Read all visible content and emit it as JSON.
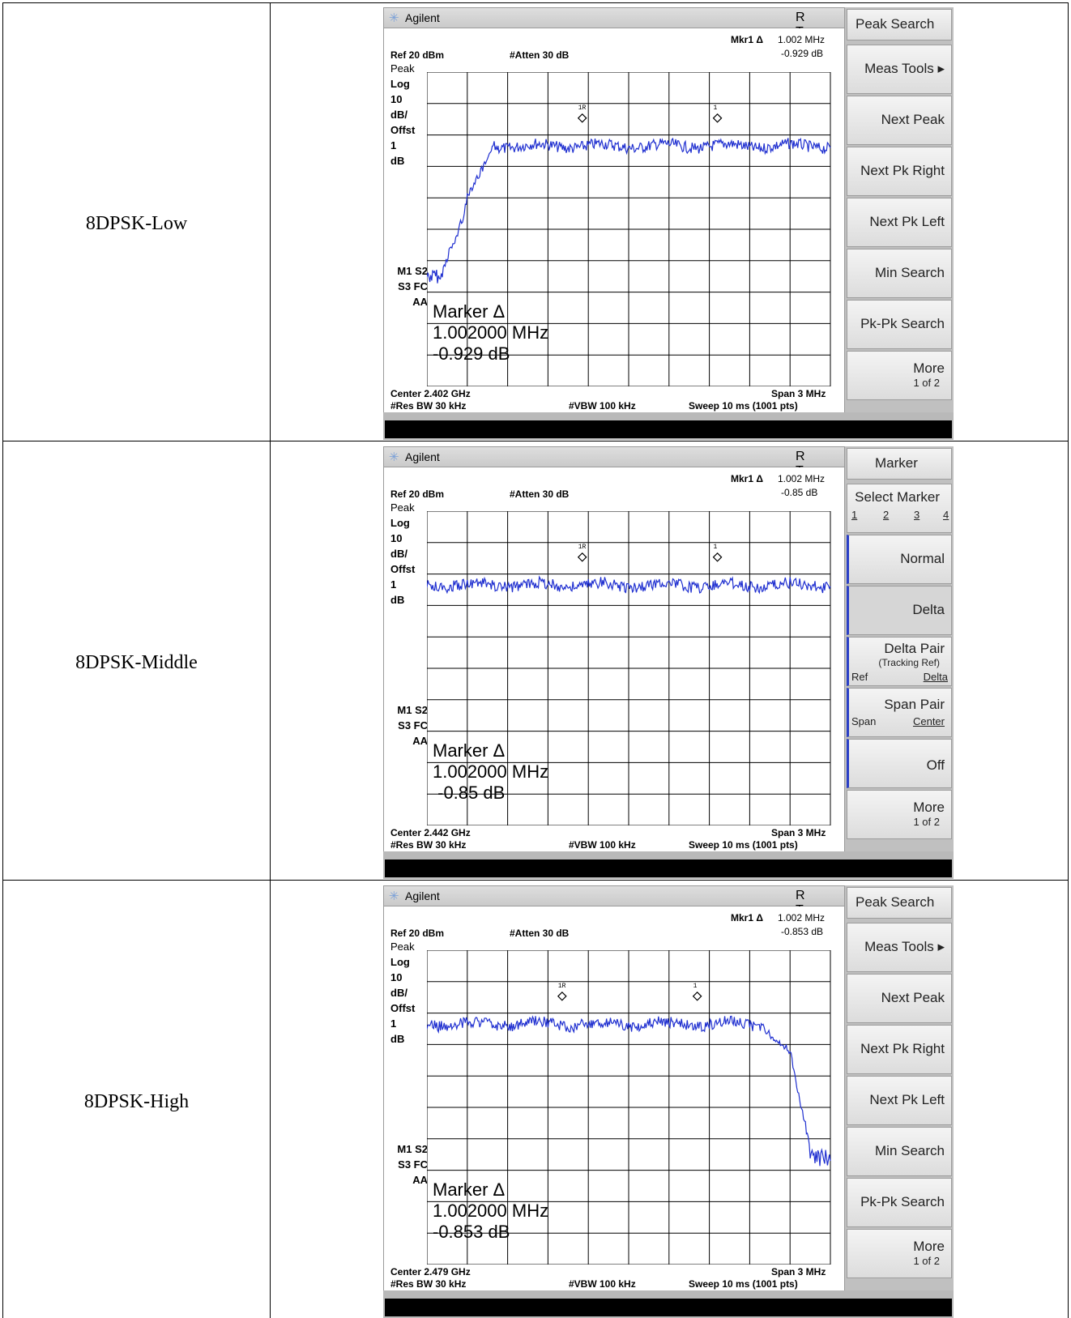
{
  "rows": [
    {
      "label": "8DPSK-Low",
      "window": {
        "brand": "Agilent",
        "rt": "R T"
      },
      "header": {
        "mkr_label": "Mkr1 Δ",
        "mkr_freq": "1.002 MHz",
        "mkr_level": "-0.929 dB",
        "ref": "Ref 20 dBm",
        "atten": "#Atten 30 dB",
        "side": [
          "Peak",
          "Log",
          "10",
          "dB/",
          "Offst",
          "1",
          "dB"
        ],
        "flags": [
          "M1  S2",
          "S3  FC",
          "AA"
        ]
      },
      "marker_box": {
        "line1": "Marker Δ",
        "line2": "1.002000 MHz",
        "line3": "-0.929 dB"
      },
      "footer": {
        "center": "Center 2.402 GHz",
        "span": "Span 3 MHz",
        "rbw": "#Res BW 30 kHz",
        "vbw": "#VBW 100 kHz",
        "sweep": "Sweep 10 ms (1001 pts)"
      },
      "softkeys": [
        "Peak Search",
        "Meas Tools ▸",
        "Next Peak",
        "Next Pk Right",
        "Next Pk Left",
        "Min Search",
        "Pk-Pk Search",
        "More"
      ],
      "softkey_more_sub": "1 of 2",
      "trace_color": "#1f2fd0",
      "trace_type": "low",
      "markers": [
        {
          "label": "1R",
          "freq_pos": 0.385
        },
        {
          "label": "1",
          "freq_pos": 0.72
        }
      ]
    },
    {
      "label": "8DPSK-Middle",
      "window": {
        "brand": "Agilent",
        "rt": "R T"
      },
      "header": {
        "mkr_label": "Mkr1 Δ",
        "mkr_freq": "1.002 MHz",
        "mkr_level": "-0.85 dB",
        "ref": "Ref 20 dBm",
        "atten": "#Atten 30 dB",
        "side": [
          "Peak",
          "Log",
          "10",
          "dB/",
          "Offst",
          "1",
          "dB"
        ],
        "flags": [
          "M1  S2",
          "S3  FC",
          "AA"
        ]
      },
      "marker_box": {
        "line1": "Marker Δ",
        "line2": "1.002000 MHz",
        "line3": " -0.85 dB"
      },
      "footer": {
        "center": "Center 2.442 GHz",
        "span": "Span 3 MHz",
        "rbw": "#Res BW 30 kHz",
        "vbw": "#VBW 100 kHz",
        "sweep": "Sweep 10 ms (1001 pts)"
      },
      "softkeys_marker": {
        "title": "Marker",
        "select": "Select Marker",
        "select_nums": [
          "1",
          "2",
          "3",
          "4"
        ],
        "normal": "Normal",
        "delta": "Delta",
        "delta_pair": "Delta Pair",
        "delta_pair_sub": "(Tracking Ref)",
        "ref": "Ref",
        "delta_u": "Delta",
        "span_pair": "Span Pair",
        "span": "Span",
        "center": "Center",
        "off": "Off",
        "more": "More",
        "more_sub": "1 of 2"
      },
      "trace_color": "#1f2fd0",
      "trace_type": "mid",
      "markers": [
        {
          "label": "1R",
          "freq_pos": 0.385
        },
        {
          "label": "1",
          "freq_pos": 0.72
        }
      ]
    },
    {
      "label": "8DPSK-High",
      "window": {
        "brand": "Agilent",
        "rt": "R T"
      },
      "header": {
        "mkr_label": "Mkr1 Δ",
        "mkr_freq": "1.002 MHz",
        "mkr_level": "-0.853 dB",
        "ref": "Ref 20 dBm",
        "atten": "#Atten 30 dB",
        "side": [
          "Peak",
          "Log",
          "10",
          "dB/",
          "Offst",
          "1",
          "dB"
        ],
        "flags": [
          "M1  S2",
          "S3  FC",
          "AA"
        ]
      },
      "marker_box": {
        "line1": "Marker Δ",
        "line2": "1.002000 MHz",
        "line3": "-0.853 dB"
      },
      "footer": {
        "center": "Center 2.479 GHz",
        "span": "Span 3 MHz",
        "rbw": "#Res BW 30 kHz",
        "vbw": "#VBW 100 kHz",
        "sweep": "Sweep 10 ms (1001 pts)"
      },
      "softkeys": [
        "Peak Search",
        "Meas Tools ▸",
        "Next Peak",
        "Next Pk Right",
        "Next Pk Left",
        "Min Search",
        "Pk-Pk Search",
        "More"
      ],
      "softkey_more_sub": "1 of 2",
      "trace_color": "#1f2fd0",
      "trace_type": "high",
      "markers": [
        {
          "label": "1R",
          "freq_pos": 0.335
        },
        {
          "label": "1",
          "freq_pos": 0.67
        }
      ]
    }
  ]
}
